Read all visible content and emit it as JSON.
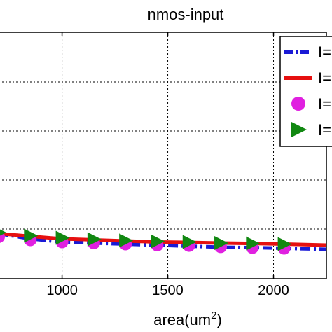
{
  "chart_data": {
    "type": "line",
    "title": "nmos-input",
    "xlabel": "area(um",
    "xlabel_sup": "2",
    "xlabel_close": ")",
    "ylabel": "",
    "xlim": [
      700,
      2250
    ],
    "ylim": [
      0,
      1
    ],
    "x_ticks": [
      1000,
      1500,
      2000
    ],
    "x_tick_labels": [
      "1000",
      "1500",
      "2000"
    ],
    "grid": true,
    "legend_placement": "top-right",
    "series": [
      {
        "name": "I=",
        "style": "dash-dot",
        "color": "#1a1ad6",
        "marker": "none",
        "x": [
          700,
          850,
          1000,
          1150,
          1300,
          1450,
          1600,
          1750,
          1900,
          2050,
          2250
        ],
        "y": [
          0.075,
          0.05,
          0.035,
          0.03,
          0.025,
          0.02,
          0.015,
          0.01,
          0.008,
          0.005,
          0.0
        ]
      },
      {
        "name": "I=",
        "style": "solid",
        "color": "#e61010",
        "marker": "none",
        "x": [
          700,
          850,
          1000,
          1150,
          1300,
          1450,
          1600,
          1750,
          1900,
          2050,
          2250
        ],
        "y": [
          0.075,
          0.062,
          0.05,
          0.045,
          0.04,
          0.035,
          0.033,
          0.03,
          0.028,
          0.025,
          0.02
        ]
      },
      {
        "name": "I=",
        "style": "none",
        "color": "#e020e0",
        "marker": "circle",
        "x": [
          700,
          850,
          1000,
          1150,
          1300,
          1450,
          1600,
          1750,
          1900,
          2050
        ],
        "y": [
          0.06,
          0.045,
          0.035,
          0.03,
          0.025,
          0.02,
          0.018,
          0.012,
          0.008,
          0.005
        ]
      },
      {
        "name": "I=",
        "style": "none",
        "color": "#118811",
        "marker": "triangle-right",
        "x": [
          700,
          850,
          1000,
          1150,
          1300,
          1450,
          1600,
          1750,
          1900,
          2050
        ],
        "y": [
          0.08,
          0.065,
          0.055,
          0.048,
          0.042,
          0.038,
          0.035,
          0.03,
          0.028,
          0.025
        ]
      }
    ]
  }
}
